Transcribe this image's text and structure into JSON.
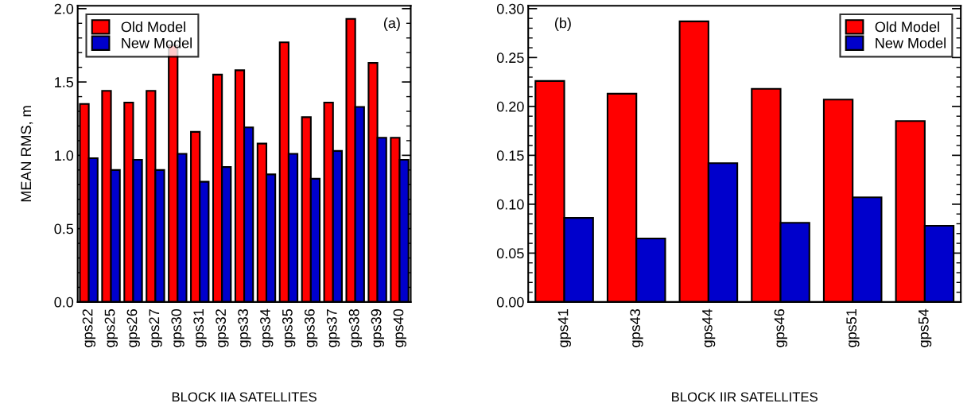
{
  "chart_data": [
    {
      "type": "bar",
      "xlabel": "BLOCK IIA SATELLITES",
      "ylabel": "MEAN RMS, m",
      "annotations": [
        "(a)"
      ],
      "categories": [
        "gps22",
        "gps25",
        "gps26",
        "gps27",
        "gps30",
        "gps31",
        "gps32",
        "gps33",
        "gps34",
        "gps35",
        "gps36",
        "gps37",
        "gps38",
        "gps39",
        "gps40"
      ],
      "series": [
        {
          "name": "Old Model",
          "color": "#ff0000",
          "values": [
            1.35,
            1.44,
            1.36,
            1.44,
            1.75,
            1.16,
            1.55,
            1.58,
            1.08,
            1.77,
            1.26,
            1.36,
            1.93,
            1.63,
            1.12
          ]
        },
        {
          "name": "New Model",
          "color": "#0000cc",
          "values": [
            0.98,
            0.9,
            0.97,
            0.9,
            1.01,
            0.82,
            0.92,
            1.19,
            0.87,
            1.01,
            0.84,
            1.03,
            1.33,
            1.12,
            0.97
          ]
        }
      ],
      "ylim": [
        0,
        2.02
      ],
      "yticks": [
        {
          "value": 0,
          "label": "0.0"
        },
        0.5,
        {
          "value": 1,
          "label": "1.0"
        },
        1.5,
        {
          "value": 2,
          "label": "2.0"
        }
      ],
      "legend": "top left",
      "grid": false
    },
    {
      "type": "bar",
      "xlabel": "BLOCK IIR SATELLITES",
      "annotations": [
        "(b)"
      ],
      "categories": [
        "gps41",
        "gps43",
        "gps44",
        "gps46",
        "gps51",
        "gps54"
      ],
      "series": [
        {
          "name": "Old Model",
          "color": "#ff0000",
          "values": [
            0.226,
            0.213,
            0.287,
            0.218,
            0.207,
            0.185
          ]
        },
        {
          "name": "New Model",
          "color": "#0000cc",
          "values": [
            0.086,
            0.065,
            0.142,
            0.081,
            0.107,
            0.078
          ]
        }
      ],
      "ylim": [
        0,
        0.303
      ],
      "yticks": [
        {
          "value": 0,
          "label": "0.00"
        },
        {
          "value": 0.05,
          "label": "0.05"
        },
        {
          "value": 0.1,
          "label": "0.10"
        },
        {
          "value": 0.15,
          "label": "0.15"
        },
        {
          "value": 0.2,
          "label": "0.20"
        },
        {
          "value": 0.25,
          "label": "0.25"
        },
        {
          "value": 0.3,
          "label": "0.30"
        }
      ],
      "legend": "top right",
      "grid": false
    }
  ]
}
